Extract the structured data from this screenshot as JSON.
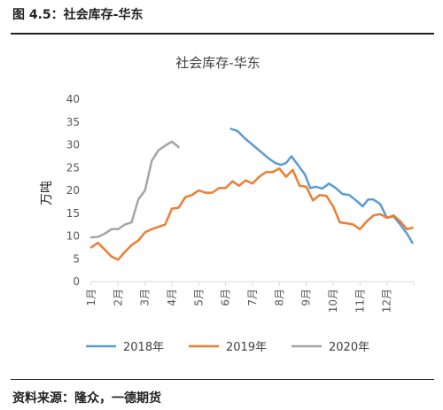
{
  "figure": {
    "title": "图 4.5：社会库存-华东",
    "source": "资料来源：隆众，一德期货"
  },
  "chart_data": {
    "type": "line",
    "title": "社会库存-华东",
    "ylabel": "万吨",
    "xlabel": "",
    "ylim": [
      0,
      40
    ],
    "yticks": [
      "0",
      "5",
      "10",
      "15",
      "20",
      "25",
      "30",
      "35",
      "40"
    ],
    "xlim": [
      1,
      13
    ],
    "xticks": [
      "1月",
      "2月",
      "3月",
      "4月",
      "5月",
      "6月",
      "7月",
      "8月",
      "9月",
      "10月",
      "11月",
      "12月"
    ],
    "grid": false,
    "legend": "bottom",
    "series": [
      {
        "name": "2018年",
        "color": "#5B9BD5",
        "x": [
          6.2,
          6.45,
          6.7,
          7.0,
          7.3,
          7.6,
          7.85,
          8.05,
          8.25,
          8.45,
          8.7,
          8.95,
          9.15,
          9.35,
          9.6,
          9.85,
          10.1,
          10.35,
          10.6,
          10.85,
          11.1,
          11.3,
          11.5,
          11.75,
          12.0,
          12.25,
          12.5,
          12.75,
          12.95
        ],
        "y": [
          33.5,
          33.0,
          31.5,
          30.0,
          28.5,
          27.0,
          26.0,
          25.6,
          26.0,
          27.5,
          25.5,
          23.5,
          20.5,
          20.8,
          20.4,
          21.5,
          20.5,
          19.2,
          19.0,
          17.8,
          16.5,
          18.0,
          18.0,
          17.0,
          14.0,
          14.3,
          12.5,
          10.5,
          8.5
        ]
      },
      {
        "name": "2019年",
        "color": "#ED7D31",
        "x": [
          1.0,
          1.25,
          1.5,
          1.75,
          2.0,
          2.25,
          2.5,
          2.75,
          3.0,
          3.25,
          3.5,
          3.75,
          4.0,
          4.25,
          4.5,
          4.75,
          5.0,
          5.25,
          5.5,
          5.75,
          6.0,
          6.25,
          6.5,
          6.75,
          7.0,
          7.25,
          7.5,
          7.75,
          8.0,
          8.25,
          8.5,
          8.75,
          9.0,
          9.25,
          9.5,
          9.75,
          10.0,
          10.25,
          10.5,
          10.75,
          11.0,
          11.25,
          11.5,
          11.75,
          12.0,
          12.25,
          12.5,
          12.75,
          12.95
        ],
        "y": [
          7.5,
          8.5,
          7.0,
          5.5,
          4.8,
          6.5,
          8.0,
          9.0,
          10.8,
          11.5,
          12.0,
          12.5,
          16.0,
          16.2,
          18.5,
          19.0,
          20.0,
          19.5,
          19.5,
          20.5,
          20.5,
          22.0,
          21.0,
          22.2,
          21.5,
          23.0,
          24.0,
          24.0,
          24.8,
          23.0,
          24.5,
          21.0,
          20.8,
          17.8,
          19.0,
          18.8,
          16.5,
          13.0,
          12.8,
          12.5,
          11.5,
          13.2,
          14.5,
          14.8,
          14.0,
          14.5,
          13.2,
          11.5,
          11.8
        ]
      },
      {
        "name": "2020年",
        "color": "#A5A5A5",
        "x": [
          1.0,
          1.25,
          1.5,
          1.75,
          2.0,
          2.25,
          2.5,
          2.75,
          3.0,
          3.25,
          3.5,
          3.75,
          4.0,
          4.25
        ],
        "y": [
          9.7,
          9.8,
          10.5,
          11.5,
          11.5,
          12.5,
          13.0,
          18.0,
          20.0,
          26.5,
          28.8,
          29.8,
          30.7,
          29.5
        ]
      }
    ]
  }
}
